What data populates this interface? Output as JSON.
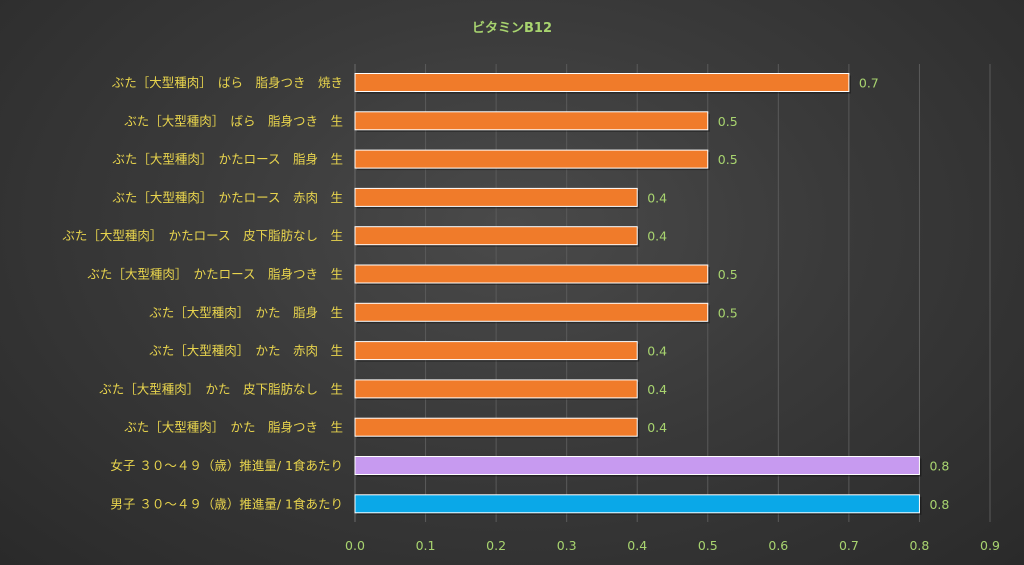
{
  "chart_data": {
    "type": "bar",
    "orientation": "horizontal",
    "title": "ビタミンB12",
    "xlim": [
      0,
      0.9
    ],
    "ticks": [
      "0.0",
      "0.1",
      "0.2",
      "0.3",
      "0.4",
      "0.5",
      "0.6",
      "0.7",
      "0.8",
      "0.9"
    ],
    "grid": true,
    "categories": [
      "ぶた［大型種肉］　ばら　脂身つき　焼き",
      "ぶた［大型種肉］　ばら　脂身つき　生",
      "ぶた［大型種肉］　かたロース　脂身　生",
      "ぶた［大型種肉］　かたロース　赤肉　生",
      "ぶた［大型種肉］　かたロース　皮下脂肪なし　生",
      "ぶた［大型種肉］　かたロース　脂身つき　生",
      "ぶた［大型種肉］　かた　脂身　生",
      "ぶた［大型種肉］　かた　赤肉　生",
      "ぶた［大型種肉］　かた　皮下脂肪なし　生",
      "ぶた［大型種肉］　かた　脂身つき　生",
      "女子 ３０～４９（歳）推進量/ 1食あたり",
      "男子 ３０～４９（歳）推進量/ 1食あたり"
    ],
    "values": [
      0.7,
      0.5,
      0.5,
      0.4,
      0.4,
      0.5,
      0.5,
      0.4,
      0.4,
      0.4,
      0.8,
      0.8
    ],
    "value_labels": [
      "0.7",
      "0.5",
      "0.5",
      "0.4",
      "0.4",
      "0.5",
      "0.5",
      "0.4",
      "0.4",
      "0.4",
      "0.8",
      "0.8"
    ],
    "colors": [
      "#f07b2a",
      "#f07b2a",
      "#f07b2a",
      "#f07b2a",
      "#f07b2a",
      "#f07b2a",
      "#f07b2a",
      "#f07b2a",
      "#f07b2a",
      "#f07b2a",
      "#c79af0",
      "#0aa8e8"
    ]
  }
}
